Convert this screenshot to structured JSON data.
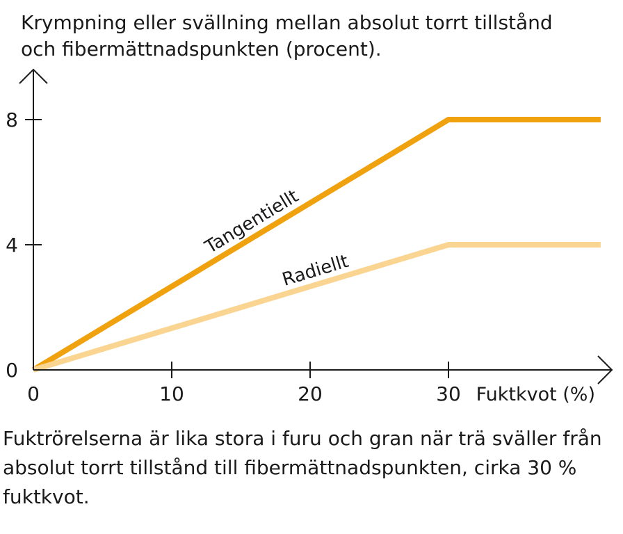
{
  "chart_data": {
    "type": "line",
    "ylabel": "Krympning eller svällning mellan absolut torrt tillstånd och fibermättnadspunkten (procent).",
    "ylabel_lines": [
      "Krympning eller svällning mellan absolut torrt tillstånd",
      "och fibermättnadspunkten (procent)."
    ],
    "xlabel": "Fuktkvot (%)",
    "xlim": [
      0,
      41
    ],
    "ylim": [
      0,
      10
    ],
    "xticks": [
      0,
      10,
      20,
      30
    ],
    "yticks": [
      0,
      4,
      8
    ],
    "grid": false,
    "series": [
      {
        "name": "Tangentiellt",
        "color": "#F0A10E",
        "x": [
          0,
          30,
          41
        ],
        "y": [
          0,
          8,
          8
        ]
      },
      {
        "name": "Radiellt",
        "color": "#FAD592",
        "x": [
          0,
          30,
          41
        ],
        "y": [
          0,
          4,
          4
        ]
      }
    ]
  },
  "caption": "Fuktrörelserna är lika stora i furu och gran när trä sväller från absolut torrt tillstånd till fibermättnadspunkten, cirka 30 % fuktkvot."
}
